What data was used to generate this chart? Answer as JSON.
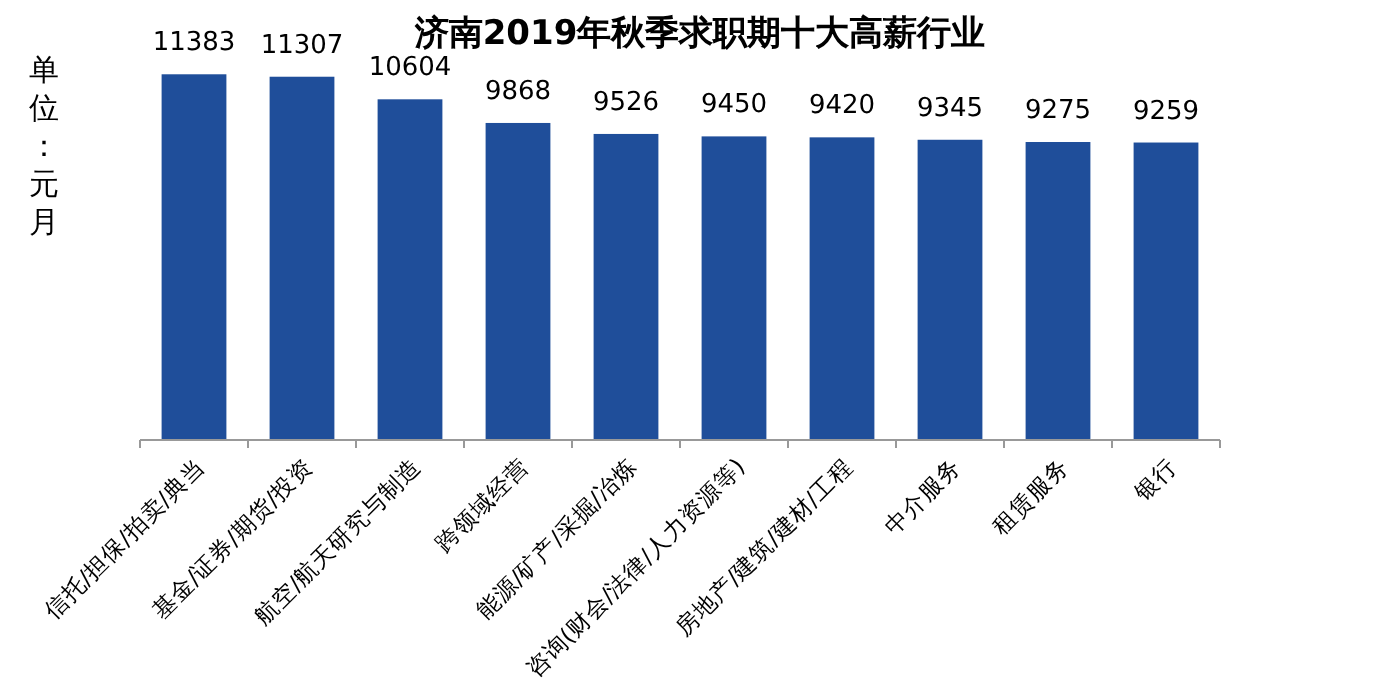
{
  "chart_data": {
    "type": "bar",
    "title": "济南2019年秋季求职期十大高薪行业",
    "ylabel": "单位：元月",
    "categories": [
      "信托/担保/拍卖/典当",
      "基金/证券/期货/投资",
      "航空/航天研究与制造",
      "跨领域经营",
      "能源/矿产/采掘/冶炼",
      "咨询(财会/法律/人力资源等)",
      "房地产/建筑/建材/工程",
      "中介服务",
      "租赁服务",
      "银行"
    ],
    "values": [
      11383,
      11307,
      10604,
      9868,
      9526,
      9450,
      9420,
      9345,
      9275,
      9259
    ],
    "color": "#1f4e9a",
    "data_labels": true
  }
}
